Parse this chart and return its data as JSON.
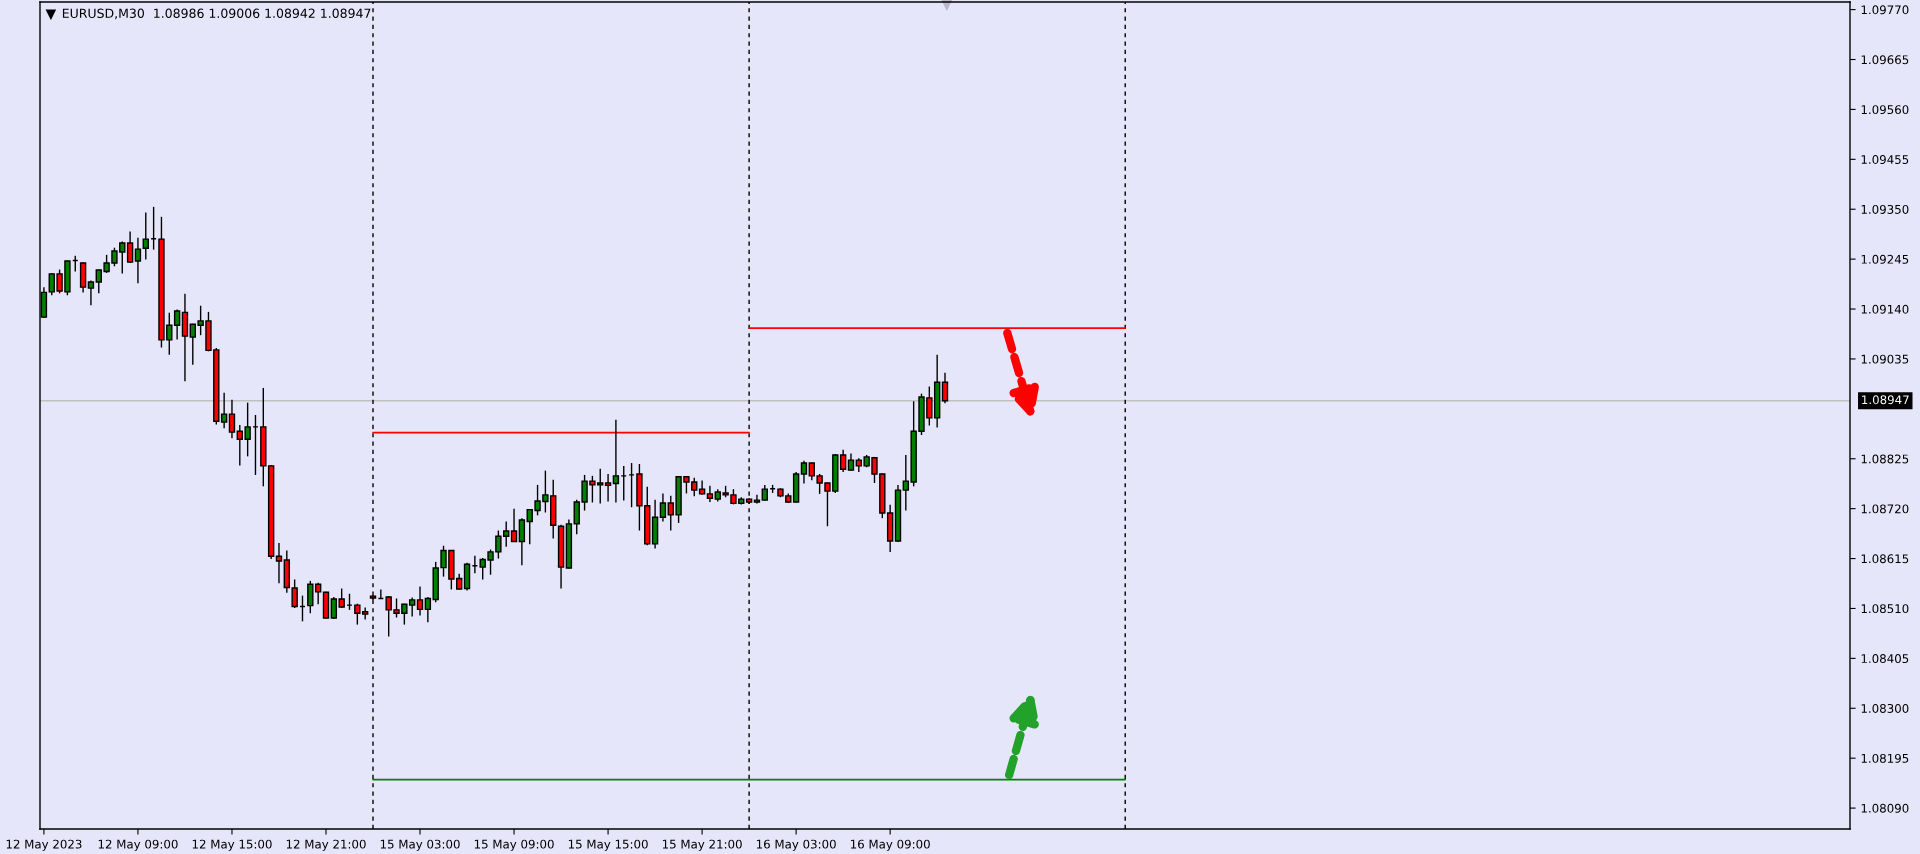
{
  "chart_data": {
    "type": "candlestick",
    "title": "EURUSD,M30  1.08986 1.09006 1.08942 1.08947",
    "categories": [
      "12 May 2023",
      null,
      null,
      null,
      null,
      null,
      null,
      null,
      null,
      null,
      null,
      null,
      "12 May 09:00",
      null,
      null,
      null,
      null,
      null,
      null,
      null,
      null,
      null,
      null,
      null,
      "12 May 15:00",
      null,
      null,
      null,
      null,
      null,
      null,
      null,
      null,
      null,
      null,
      null,
      "12 May 21:00",
      null,
      null,
      null,
      null,
      null,
      null,
      null,
      null,
      null,
      null,
      null,
      "15 May 03:00",
      null,
      null,
      null,
      null,
      null,
      null,
      null,
      null,
      null,
      null,
      null,
      "15 May 09:00",
      null,
      null,
      null,
      null,
      null,
      null,
      null,
      null,
      null,
      null,
      null,
      "15 May 15:00",
      null,
      null,
      null,
      null,
      null,
      null,
      null,
      null,
      null,
      null,
      null,
      "15 May 21:00",
      null,
      null,
      null,
      null,
      null,
      null,
      null,
      null,
      null,
      null,
      null,
      "16 May 03:00",
      null,
      null,
      null,
      null,
      null,
      null,
      null,
      null,
      null,
      null,
      null,
      "16 May 09:00",
      null,
      null,
      null,
      null,
      null,
      null,
      null,
      null,
      null,
      null,
      null,
      null,
      null,
      null,
      null,
      null,
      null,
      null,
      null,
      null,
      null,
      null,
      null,
      null,
      null,
      null,
      null,
      null,
      null,
      null,
      null,
      null,
      null,
      null,
      null,
      null,
      null,
      null,
      null,
      null,
      null,
      null,
      null,
      null,
      null,
      null,
      null,
      null,
      null,
      null,
      null,
      null,
      null,
      null,
      null,
      null,
      null,
      null,
      null,
      null,
      null,
      null,
      null,
      null,
      null,
      null,
      null,
      null,
      null,
      null,
      null,
      null,
      null,
      null,
      null,
      null,
      null,
      null,
      null,
      null,
      null,
      null,
      null,
      null,
      null,
      null,
      null,
      null,
      null,
      null,
      null,
      null,
      null,
      null,
      null,
      null,
      null,
      null,
      null,
      null,
      null,
      null,
      null,
      null,
      null,
      null,
      null,
      null,
      null,
      null,
      null,
      null,
      null,
      null,
      null,
      null,
      null,
      null,
      null,
      null,
      null,
      null
    ],
    "ohlc": [
      [
        1.09123,
        1.09186,
        1.09121,
        1.09175
      ],
      [
        1.09176,
        1.09216,
        1.09169,
        1.09214
      ],
      [
        1.09214,
        1.09223,
        1.09173,
        1.09178
      ],
      [
        1.09176,
        1.09242,
        1.09169,
        1.09241
      ],
      [
        1.09242,
        1.09252,
        1.09219,
        1.09242
      ],
      [
        1.09237,
        1.09238,
        1.09175,
        1.09186
      ],
      [
        1.09184,
        1.092,
        1.09148,
        1.09197
      ],
      [
        1.09197,
        1.09223,
        1.09173,
        1.09222
      ],
      [
        1.09219,
        1.09254,
        1.09216,
        1.09237
      ],
      [
        1.09237,
        1.09269,
        1.0923,
        1.09262
      ],
      [
        1.0926,
        1.09282,
        1.09215,
        1.09279
      ],
      [
        1.09279,
        1.09303,
        1.09237,
        1.09239
      ],
      [
        1.09241,
        1.0929,
        1.09194,
        1.09266
      ],
      [
        1.09268,
        1.09343,
        1.09244,
        1.09287
      ],
      [
        1.09288,
        1.09355,
        1.09265,
        1.09288
      ],
      [
        1.09287,
        1.09334,
        1.09059,
        1.09075
      ],
      [
        1.09075,
        1.09132,
        1.09044,
        1.09106
      ],
      [
        1.09106,
        1.09139,
        1.09076,
        1.09136
      ],
      [
        1.09133,
        1.09172,
        1.08988,
        1.09083
      ],
      [
        1.09081,
        1.09109,
        1.09023,
        1.09108
      ],
      [
        1.09106,
        1.09147,
        1.09085,
        1.09115
      ],
      [
        1.09115,
        1.09134,
        1.09051,
        1.09053
      ],
      [
        1.09054,
        1.09058,
        1.08897,
        1.08904
      ],
      [
        1.08902,
        1.08964,
        1.08889,
        1.08919
      ],
      [
        1.08919,
        1.08949,
        1.08868,
        1.08881
      ],
      [
        1.08883,
        1.08896,
        1.08811,
        1.08866
      ],
      [
        1.08866,
        1.08943,
        1.0883,
        1.08892
      ],
      [
        1.08892,
        1.08917,
        1.08791,
        1.08892
      ],
      [
        1.08892,
        1.08974,
        1.08767,
        1.0881
      ],
      [
        1.0881,
        1.08812,
        1.08614,
        1.0862
      ],
      [
        1.0862,
        1.08648,
        1.08563,
        1.0861
      ],
      [
        1.08612,
        1.08632,
        1.08543,
        1.08554
      ],
      [
        1.08553,
        1.08571,
        1.08511,
        1.08514
      ],
      [
        1.08514,
        1.08537,
        1.08483,
        1.08514
      ],
      [
        1.08516,
        1.08568,
        1.085,
        1.08561
      ],
      [
        1.08561,
        1.08564,
        1.08519,
        1.08545
      ],
      [
        1.08544,
        1.08545,
        1.08489,
        1.0849
      ],
      [
        1.0849,
        1.08534,
        1.08488,
        1.0853
      ],
      [
        1.0853,
        1.08552,
        1.08511,
        1.08513
      ],
      [
        1.08517,
        1.08541,
        1.08507,
        1.08517
      ],
      [
        1.08517,
        1.0852,
        1.08476,
        1.085
      ],
      [
        1.08503,
        1.08512,
        1.08487,
        1.08498
      ],
      [
        1.08536,
        1.08538,
        1.08528,
        1.08532
      ],
      [
        1.08531,
        1.0855,
        1.0853,
        1.08531
      ],
      [
        1.08534,
        1.08536,
        1.08451,
        1.08507
      ],
      [
        1.08507,
        1.08531,
        1.08491,
        1.085
      ],
      [
        1.085,
        1.0852,
        1.08476,
        1.08519
      ],
      [
        1.08517,
        1.08533,
        1.08493,
        1.08528
      ],
      [
        1.08528,
        1.08556,
        1.08495,
        1.08508
      ],
      [
        1.08508,
        1.08534,
        1.08481,
        1.08531
      ],
      [
        1.08529,
        1.08608,
        1.08523,
        1.08595
      ],
      [
        1.08596,
        1.08642,
        1.08577,
        1.08632
      ],
      [
        1.08632,
        1.08632,
        1.0855,
        1.08572
      ],
      [
        1.08573,
        1.08583,
        1.0855,
        1.08551
      ],
      [
        1.08552,
        1.08606,
        1.08548,
        1.08603
      ],
      [
        1.086,
        1.08621,
        1.08584,
        1.086
      ],
      [
        1.08597,
        1.08616,
        1.08571,
        1.08613
      ],
      [
        1.08612,
        1.08634,
        1.08581,
        1.08629
      ],
      [
        1.08629,
        1.08674,
        1.08615,
        1.08662
      ],
      [
        1.08662,
        1.08693,
        1.0864,
        1.08673
      ],
      [
        1.08673,
        1.0872,
        1.0865,
        1.08651
      ],
      [
        1.08651,
        1.087,
        1.08601,
        1.08696
      ],
      [
        1.08693,
        1.08719,
        1.08645,
        1.08718
      ],
      [
        1.08716,
        1.0877,
        1.08706,
        1.08736
      ],
      [
        1.08735,
        1.088,
        1.08712,
        1.08749
      ],
      [
        1.08747,
        1.08781,
        1.08657,
        1.08685
      ],
      [
        1.08683,
        1.08686,
        1.08552,
        1.08597
      ],
      [
        1.08595,
        1.08697,
        1.08594,
        1.08688
      ],
      [
        1.08688,
        1.08739,
        1.08666,
        1.08734
      ],
      [
        1.08734,
        1.08791,
        1.08716,
        1.08778
      ],
      [
        1.08778,
        1.08789,
        1.08733,
        1.0877
      ],
      [
        1.0877,
        1.08804,
        1.08731,
        1.08774
      ],
      [
        1.08774,
        1.08793,
        1.08735,
        1.08769
      ],
      [
        1.08773,
        1.08907,
        1.08733,
        1.08789
      ],
      [
        1.08789,
        1.0881,
        1.08737,
        1.08789
      ],
      [
        1.08791,
        1.08816,
        1.08723,
        1.08791
      ],
      [
        1.08793,
        1.08814,
        1.08674,
        1.08726
      ],
      [
        1.08726,
        1.08766,
        1.08643,
        1.08646
      ],
      [
        1.08646,
        1.08739,
        1.08636,
        1.08702
      ],
      [
        1.08702,
        1.08752,
        1.08693,
        1.08732
      ],
      [
        1.08732,
        1.08747,
        1.08674,
        1.08707
      ],
      [
        1.08707,
        1.08788,
        1.0869,
        1.08787
      ],
      [
        1.08787,
        1.08788,
        1.08752,
        1.08776
      ],
      [
        1.08776,
        1.08785,
        1.08746,
        1.08759
      ],
      [
        1.08761,
        1.08779,
        1.08749,
        1.08751
      ],
      [
        1.08751,
        1.08768,
        1.08734,
        1.08742
      ],
      [
        1.0874,
        1.08761,
        1.08735,
        1.08755
      ],
      [
        1.08753,
        1.08768,
        1.08744,
        1.08749
      ],
      [
        1.08749,
        1.08761,
        1.08729,
        1.08731
      ],
      [
        1.08731,
        1.08744,
        1.08729,
        1.0874
      ],
      [
        1.0874,
        1.08742,
        1.0873,
        1.08734
      ],
      [
        1.08734,
        1.08749,
        1.08731,
        1.08738
      ],
      [
        1.08738,
        1.0877,
        1.08737,
        1.08761
      ],
      [
        1.08762,
        1.0877,
        1.08753,
        1.08762
      ],
      [
        1.08761,
        1.08763,
        1.08744,
        1.08747
      ],
      [
        1.08747,
        1.08752,
        1.08732,
        1.08734
      ],
      [
        1.08734,
        1.08797,
        1.08733,
        1.08793
      ],
      [
        1.08793,
        1.08821,
        1.08773,
        1.08816
      ],
      [
        1.08816,
        1.08817,
        1.0878,
        1.08789
      ],
      [
        1.08789,
        1.08793,
        1.08751,
        1.08774
      ],
      [
        1.08774,
        1.08775,
        1.08683,
        1.08757
      ],
      [
        1.08757,
        1.08835,
        1.08753,
        1.08833
      ],
      [
        1.08833,
        1.08844,
        1.08797,
        1.08803
      ],
      [
        1.08801,
        1.08836,
        1.088,
        1.08822
      ],
      [
        1.08822,
        1.08826,
        1.08797,
        1.0881
      ],
      [
        1.0881,
        1.08833,
        1.08807,
        1.08829
      ],
      [
        1.08827,
        1.08829,
        1.08774,
        1.08793
      ],
      [
        1.08793,
        1.08794,
        1.087,
        1.08711
      ],
      [
        1.08711,
        1.08728,
        1.08629,
        1.08652
      ],
      [
        1.08652,
        1.0877,
        1.0865,
        1.08759
      ],
      [
        1.08759,
        1.08833,
        1.08716,
        1.08778
      ],
      [
        1.08776,
        1.08946,
        1.08767,
        1.08883
      ],
      [
        1.08883,
        1.08962,
        1.08875,
        1.08955
      ],
      [
        1.08953,
        1.08977,
        1.08895,
        1.08911
      ],
      [
        1.08911,
        1.09044,
        1.08891,
        1.08986
      ],
      [
        1.08986,
        1.09006,
        1.08942,
        1.08947
      ],
      null,
      null,
      null,
      null,
      null,
      null,
      null,
      null,
      null,
      null,
      null,
      null,
      null,
      null,
      null,
      null,
      null,
      null,
      null,
      null,
      null,
      null,
      null,
      null,
      null,
      null,
      null,
      null,
      null,
      null,
      null,
      null,
      null,
      null,
      null,
      null,
      null,
      null,
      null,
      null,
      null,
      null,
      null,
      null,
      null,
      null,
      null,
      null,
      null,
      null,
      null,
      null,
      null,
      null,
      null,
      null,
      null,
      null,
      null,
      null,
      null,
      null,
      null,
      null,
      null,
      null,
      null,
      null,
      null,
      null,
      null,
      null,
      null,
      null,
      null,
      null,
      null,
      null,
      null,
      null,
      null,
      null,
      null,
      null,
      null,
      null,
      null,
      null,
      null,
      null,
      null,
      null,
      null,
      null,
      null,
      null,
      null,
      null,
      null,
      null,
      null,
      null,
      null,
      null,
      null,
      null,
      null,
      null,
      null,
      null,
      null,
      null,
      null,
      null,
      null
    ],
    "colors": [
      "#008000",
      "#008000",
      "#ff0000",
      "#008000",
      "#000000",
      "#ff0000",
      "#008000",
      "#008000",
      "#008000",
      "#008000",
      "#008000",
      "#ff0000",
      "#008000",
      "#008000",
      "#000000",
      "#ff0000",
      "#008000",
      "#008000",
      "#ff0000",
      "#008000",
      "#008000",
      "#ff0000",
      "#ff0000",
      "#008000",
      "#ff0000",
      "#ff0000",
      "#008000",
      "#000000",
      "#ff0000",
      "#ff0000",
      "#ff0000",
      "#ff0000",
      "#ff0000",
      "#000000",
      "#008000",
      "#ff0000",
      "#ff0000",
      "#008000",
      "#ff0000",
      "#000000",
      "#ff0000",
      "#ff0000",
      "#ff0000",
      "#000000",
      "#ff0000",
      "#ff0000",
      "#008000",
      "#008000",
      "#ff0000",
      "#008000",
      "#008000",
      "#008000",
      "#ff0000",
      "#ff0000",
      "#008000",
      "#000000",
      "#008000",
      "#008000",
      "#008000",
      "#008000",
      "#ff0000",
      "#008000",
      "#008000",
      "#008000",
      "#008000",
      "#ff0000",
      "#ff0000",
      "#008000",
      "#008000",
      "#008000",
      "#ff0000",
      "#008000",
      "#ff0000",
      "#008000",
      "#000000",
      "#000000",
      "#ff0000",
      "#ff0000",
      "#008000",
      "#008000",
      "#ff0000",
      "#008000",
      "#ff0000",
      "#ff0000",
      "#ff0000",
      "#ff0000",
      "#008000",
      "#ff0000",
      "#ff0000",
      "#008000",
      "#ff0000",
      "#008000",
      "#008000",
      "#000000",
      "#ff0000",
      "#ff0000",
      "#008000",
      "#008000",
      "#ff0000",
      "#ff0000",
      "#ff0000",
      "#008000",
      "#ff0000",
      "#008000",
      "#ff0000",
      "#008000",
      "#ff0000",
      "#ff0000",
      "#ff0000",
      "#008000",
      "#008000",
      "#008000",
      "#008000",
      "#ff0000",
      "#008000",
      "#ff0000",
      null,
      null,
      null,
      null,
      null,
      null,
      null,
      null,
      null,
      null,
      null,
      null,
      null,
      null,
      null,
      null,
      null,
      null,
      null,
      null,
      null,
      null,
      null,
      null,
      null,
      null,
      null,
      null,
      null,
      null,
      null,
      null,
      null,
      null,
      null,
      null,
      null,
      null,
      null,
      null,
      null,
      null,
      null,
      null,
      null,
      null,
      null,
      null,
      null,
      null,
      null,
      null,
      null,
      null,
      null,
      null,
      null,
      null,
      null,
      null,
      null,
      null,
      null,
      null,
      null,
      null,
      null,
      null,
      null,
      null,
      null,
      null,
      null,
      null,
      null,
      null,
      null,
      null,
      null,
      null,
      null,
      null,
      null,
      null,
      null,
      null,
      null,
      null,
      null,
      null,
      null,
      null,
      null,
      null,
      null,
      null,
      null,
      null,
      null,
      null,
      null,
      null,
      null,
      null,
      null,
      null,
      null,
      null,
      null,
      null,
      null,
      null,
      null,
      null,
      null
    ],
    "series": [
      {
        "type": "line",
        "color": "#ff0000",
        "values": [
          null,
          null,
          null,
          null,
          null,
          null,
          null,
          null,
          null,
          null,
          null,
          null,
          null,
          null,
          null,
          null,
          null,
          null,
          null,
          null,
          null,
          null,
          null,
          null,
          null,
          null,
          null,
          null,
          null,
          null,
          null,
          null,
          null,
          null,
          null,
          null,
          null,
          null,
          null,
          null,
          null,
          null,
          1.0888,
          1.0888,
          1.0888,
          1.0888,
          1.0888,
          1.0888,
          1.0888,
          1.0888,
          1.0888,
          1.0888,
          1.0888,
          1.0888,
          1.0888,
          1.0888,
          1.0888,
          1.0888,
          1.0888,
          1.0888,
          1.0888,
          1.0888,
          1.0888,
          1.0888,
          1.0888,
          1.0888,
          1.0888,
          1.0888,
          1.0888,
          1.0888,
          1.0888,
          1.0888,
          1.0888,
          1.0888,
          1.0888,
          1.0888,
          1.0888,
          1.0888,
          1.0888,
          1.0888,
          1.0888,
          1.0888,
          1.0888,
          1.0888,
          1.0888,
          1.0888,
          1.0888,
          1.0888,
          1.0888,
          1.0888,
          1.0888,
          null,
          null,
          null,
          null,
          null,
          null,
          null,
          null,
          null,
          null,
          null,
          null,
          null,
          null,
          null,
          null,
          null,
          null,
          null,
          null,
          null,
          null,
          null,
          null,
          null,
          null,
          null,
          null,
          null,
          null,
          null,
          null,
          null,
          null,
          null,
          null,
          null,
          null,
          null,
          null,
          null,
          null,
          null,
          null,
          null,
          null,
          null,
          null,
          null,
          null,
          null,
          null,
          null,
          null,
          null,
          null,
          null,
          null,
          null,
          null,
          null,
          null,
          null,
          null,
          null,
          null,
          null,
          null,
          null,
          null,
          null,
          null,
          null,
          null,
          null,
          null,
          null,
          null,
          null,
          null,
          null,
          null,
          null,
          null,
          null,
          null,
          null,
          null,
          null,
          null,
          null,
          null,
          null,
          null,
          null,
          null,
          null,
          null,
          null,
          null,
          null,
          null,
          null,
          null,
          null,
          null,
          null,
          null,
          null,
          null,
          null,
          null,
          null,
          null,
          null,
          null,
          null,
          null,
          null,
          null,
          null,
          null,
          null,
          null,
          null,
          null,
          null,
          null,
          null,
          null,
          null,
          null,
          null,
          null,
          null,
          null,
          null,
          null,
          null,
          null
        ]
      },
      {
        "type": "line",
        "color": "#ff0000",
        "values": [
          null,
          null,
          null,
          null,
          null,
          null,
          null,
          null,
          null,
          null,
          null,
          null,
          null,
          null,
          null,
          null,
          null,
          null,
          null,
          null,
          null,
          null,
          null,
          null,
          null,
          null,
          null,
          null,
          null,
          null,
          null,
          null,
          null,
          null,
          null,
          null,
          null,
          null,
          null,
          null,
          null,
          null,
          null,
          null,
          null,
          null,
          null,
          null,
          null,
          null,
          null,
          null,
          null,
          null,
          null,
          null,
          null,
          null,
          null,
          null,
          null,
          null,
          null,
          null,
          null,
          null,
          null,
          null,
          null,
          null,
          null,
          null,
          null,
          null,
          null,
          null,
          null,
          null,
          null,
          null,
          null,
          null,
          null,
          null,
          null,
          null,
          null,
          null,
          null,
          null,
          1.091,
          1.091,
          1.091,
          1.091,
          1.091,
          1.091,
          1.091,
          1.091,
          1.091,
          1.091,
          1.091,
          1.091,
          1.091,
          1.091,
          1.091,
          1.091,
          1.091,
          1.091,
          1.091,
          1.091,
          1.091,
          1.091,
          1.091,
          1.091,
          1.091,
          1.091,
          1.091,
          1.091,
          1.091,
          1.091,
          1.091,
          1.091,
          1.091,
          1.091,
          1.091,
          1.091,
          1.091,
          1.091,
          1.091,
          1.091,
          1.091,
          1.091,
          1.091,
          1.091,
          1.091,
          1.091,
          1.091,
          1.091,
          1.091,
          null,
          null,
          null,
          null,
          null,
          null,
          null,
          null,
          null,
          null,
          null,
          null,
          null,
          null,
          null,
          null,
          null,
          null,
          null,
          null,
          null,
          null,
          null,
          null,
          null,
          null,
          null,
          null,
          null,
          null,
          null,
          null,
          null,
          null,
          null,
          null,
          null,
          null,
          null,
          null,
          null,
          null,
          null,
          null,
          null,
          null,
          null,
          null,
          null,
          null,
          null,
          null,
          null,
          null,
          null,
          null,
          null,
          null,
          null,
          null,
          null,
          null,
          null,
          null,
          null,
          null,
          null,
          null,
          null,
          null,
          null,
          null,
          null,
          null,
          null,
          null,
          null,
          null,
          null,
          null,
          null,
          null,
          null,
          null,
          null,
          null,
          null,
          null,
          null,
          null,
          null,
          null
        ]
      },
      {
        "type": "line",
        "color": "#008000",
        "values": [
          null,
          null,
          null,
          null,
          null,
          null,
          null,
          null,
          null,
          null,
          null,
          null,
          null,
          null,
          null,
          null,
          null,
          null,
          null,
          null,
          null,
          null,
          null,
          null,
          null,
          null,
          null,
          null,
          null,
          null,
          null,
          null,
          null,
          null,
          null,
          null,
          null,
          null,
          null,
          null,
          null,
          null,
          1.0815,
          1.0815,
          1.0815,
          1.0815,
          1.0815,
          1.0815,
          1.0815,
          1.0815,
          1.0815,
          1.0815,
          1.0815,
          1.0815,
          1.0815,
          1.0815,
          1.0815,
          1.0815,
          1.0815,
          1.0815,
          1.0815,
          1.0815,
          1.0815,
          1.0815,
          1.0815,
          1.0815,
          1.0815,
          1.0815,
          1.0815,
          1.0815,
          1.0815,
          1.0815,
          1.0815,
          1.0815,
          1.0815,
          1.0815,
          1.0815,
          1.0815,
          1.0815,
          1.0815,
          1.0815,
          1.0815,
          1.0815,
          1.0815,
          1.0815,
          1.0815,
          1.0815,
          1.0815,
          1.0815,
          1.0815,
          1.0815,
          1.0815,
          1.0815,
          1.0815,
          1.0815,
          1.0815,
          1.0815,
          1.0815,
          1.0815,
          1.0815,
          1.0815,
          1.0815,
          1.0815,
          1.0815,
          1.0815,
          1.0815,
          1.0815,
          1.0815,
          1.0815,
          1.0815,
          1.0815,
          1.0815,
          1.0815,
          1.0815,
          1.0815,
          1.0815,
          1.0815,
          1.0815,
          1.0815,
          1.0815,
          1.0815,
          1.0815,
          1.0815,
          1.0815,
          1.0815,
          1.0815,
          1.0815,
          1.0815,
          1.0815,
          1.0815,
          1.0815,
          1.0815,
          1.0815,
          1.0815,
          1.0815,
          1.0815,
          1.0815,
          1.0815,
          1.0815,
          null,
          null,
          null,
          null,
          null,
          null,
          null,
          null,
          null,
          null,
          null,
          null,
          null,
          null,
          null,
          null,
          null,
          null,
          null,
          null,
          null,
          null,
          null,
          null,
          null,
          null,
          null,
          null,
          null,
          null,
          null,
          null,
          null,
          null,
          null,
          null,
          null,
          null,
          null,
          null,
          null,
          null,
          null,
          null,
          null,
          null,
          null,
          null,
          null,
          null,
          null,
          null,
          null,
          null,
          null,
          null,
          null,
          null,
          null,
          null,
          null,
          null,
          null,
          null,
          null,
          null,
          null,
          null,
          null,
          null,
          null,
          null,
          null,
          null,
          null,
          null,
          null,
          null,
          null,
          null,
          null,
          null,
          null,
          null,
          null,
          null,
          null,
          null,
          null,
          null,
          null,
          null
        ]
      }
    ],
    "ref_lines": [
      {
        "axis": "y",
        "value": 1.08947,
        "label": "1.08947",
        "color": "#c0c0c0",
        "line_style": "solid"
      }
    ],
    "ylim": [
      1.08046,
      1.09786
    ],
    "yticks": [
      {
        "value": 1.0809,
        "label": "1.08090"
      },
      {
        "value": 1.08195,
        "label": "1.08195"
      },
      {
        "value": 1.083,
        "label": "1.08300"
      },
      {
        "value": 1.08405,
        "label": "1.08405"
      },
      {
        "value": 1.0851,
        "label": "1.08510"
      },
      {
        "value": 1.08615,
        "label": "1.08615"
      },
      {
        "value": 1.0872,
        "label": "1.08720"
      },
      {
        "value": 1.08825,
        "label": "1.08825"
      },
      {
        "value": 1.09035,
        "label": "1.09035"
      },
      {
        "value": 1.0914,
        "label": "1.09140"
      },
      {
        "value": 1.09245,
        "label": "1.09245"
      },
      {
        "value": 1.0935,
        "label": "1.09350"
      },
      {
        "value": 1.09455,
        "label": "1.09455"
      },
      {
        "value": 1.0956,
        "label": "1.09560"
      },
      {
        "value": 1.09665,
        "label": "1.09665"
      },
      {
        "value": 1.0977,
        "label": "1.09770"
      }
    ]
  }
}
